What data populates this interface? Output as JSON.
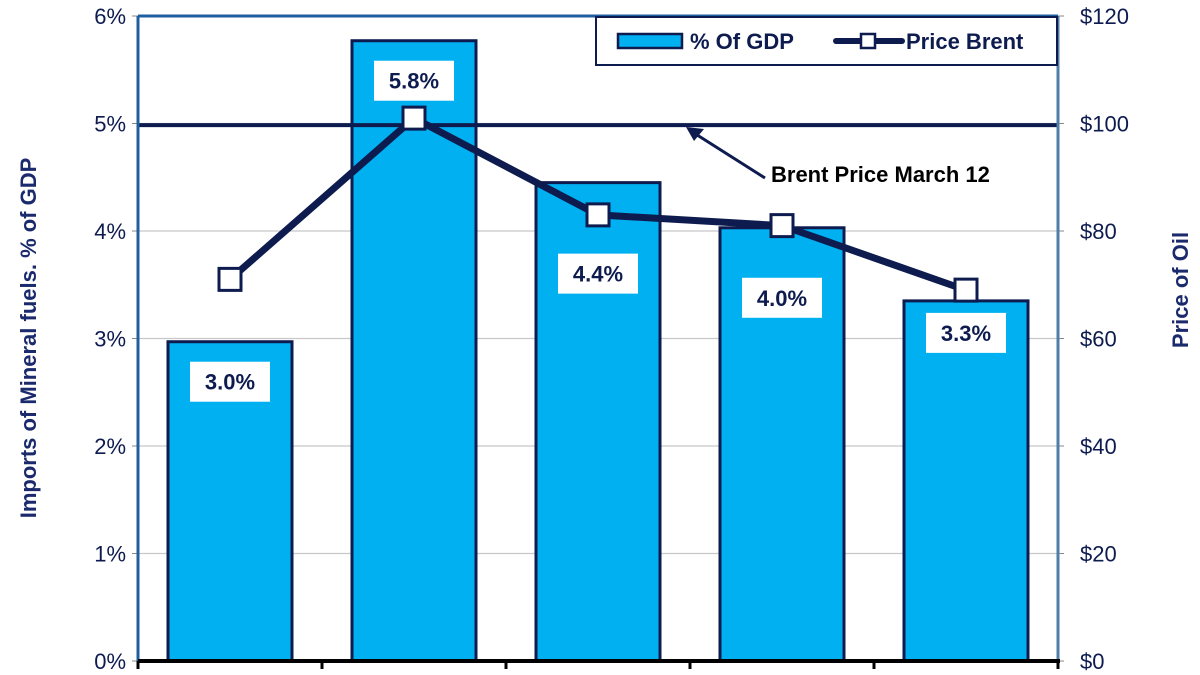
{
  "chart_data": {
    "type": "bar",
    "title": "",
    "xlabel": "",
    "ylabel": "Imports of Mineral fuels. % of GDP",
    "y2label": "Price of Oil",
    "categories": [
      "",
      "",
      "",
      "",
      ""
    ],
    "ylim": [
      0,
      6
    ],
    "y2lim": [
      0,
      120
    ],
    "y_ticks": [
      "0%",
      "1%",
      "2%",
      "3%",
      "4%",
      "5%",
      "6%"
    ],
    "y2_ticks": [
      "$0",
      "$20",
      "$40",
      "$60",
      "$80",
      "$100",
      "$120"
    ],
    "grid": true,
    "legend_position": "top-right",
    "series": [
      {
        "name": "% Of GDP",
        "type": "bar",
        "axis": "left",
        "color": "#00b0f0",
        "values": [
          2.97,
          5.77,
          4.45,
          4.03,
          3.35
        ],
        "labels": [
          "3.0%",
          "5.8%",
          "4.4%",
          "4.0%",
          "3.3%"
        ]
      },
      {
        "name": "Price Brent",
        "type": "line",
        "axis": "right",
        "color": "#0d1b4f",
        "marker": "square",
        "values": [
          71,
          101,
          83,
          81,
          69
        ]
      }
    ],
    "reference_line": {
      "axis": "right",
      "value": 99.7,
      "color": "#0d1b4f",
      "annotation": "Brent Price March 12"
    },
    "colors": {
      "bar_fill": "#00b0f0",
      "bar_edge": "#0d1b4f",
      "line": "#0d1b4f",
      "plot_border": "#1f5fa0",
      "gridline": "#c8c8c8",
      "axis_text": "#0d1b4f"
    }
  }
}
